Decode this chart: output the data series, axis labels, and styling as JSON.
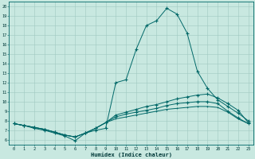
{
  "xlabel": "Humidex (Indice chaleur)",
  "bg_color": "#c8e8e0",
  "grid_color": "#a0c8c0",
  "line_color": "#006868",
  "xlim": [
    -0.5,
    23.5
  ],
  "ylim": [
    5.5,
    20.5
  ],
  "xticks": [
    0,
    1,
    2,
    3,
    4,
    5,
    6,
    7,
    8,
    9,
    10,
    11,
    12,
    13,
    14,
    15,
    16,
    17,
    18,
    19,
    20,
    21,
    22,
    23
  ],
  "yticks": [
    6,
    7,
    8,
    9,
    10,
    11,
    12,
    13,
    14,
    15,
    16,
    17,
    18,
    19,
    20
  ],
  "curve1_x": [
    0,
    1,
    2,
    3,
    4,
    5,
    6,
    7,
    8,
    9,
    10,
    11,
    12,
    13,
    14,
    15,
    16,
    17,
    18,
    19,
    20,
    21,
    22,
    23
  ],
  "curve1_y": [
    7.7,
    7.5,
    7.2,
    7.0,
    6.7,
    6.4,
    5.9,
    6.7,
    7.0,
    7.2,
    12.0,
    12.3,
    15.5,
    18.0,
    18.5,
    19.8,
    19.2,
    17.2,
    13.2,
    11.4,
    10.2,
    9.5,
    8.8,
    8.0
  ],
  "curve2_x": [
    0,
    1,
    2,
    3,
    4,
    5,
    6,
    7,
    8,
    9,
    10,
    11,
    12,
    13,
    14,
    15,
    16,
    17,
    18,
    19,
    20,
    21,
    22,
    23
  ],
  "curve2_y": [
    7.7,
    7.5,
    7.3,
    7.1,
    6.8,
    6.5,
    6.3,
    6.7,
    7.2,
    7.8,
    8.6,
    8.9,
    9.2,
    9.5,
    9.7,
    10.0,
    10.3,
    10.5,
    10.7,
    10.8,
    10.4,
    9.8,
    9.1,
    7.8
  ],
  "curve3_x": [
    0,
    1,
    2,
    3,
    4,
    5,
    6,
    7,
    8,
    9,
    10,
    11,
    12,
    13,
    14,
    15,
    16,
    17,
    18,
    19,
    20,
    21,
    22,
    23
  ],
  "curve3_y": [
    7.7,
    7.5,
    7.3,
    7.1,
    6.8,
    6.5,
    6.3,
    6.7,
    7.2,
    7.8,
    8.4,
    8.7,
    8.9,
    9.1,
    9.3,
    9.6,
    9.8,
    9.9,
    10.0,
    10.0,
    9.8,
    9.0,
    8.3,
    7.7
  ],
  "curve4_x": [
    0,
    1,
    2,
    3,
    4,
    5,
    6,
    7,
    8,
    9,
    10,
    11,
    12,
    13,
    14,
    15,
    16,
    17,
    18,
    19,
    20,
    21,
    22,
    23
  ],
  "curve4_y": [
    7.7,
    7.5,
    7.3,
    7.1,
    6.8,
    6.5,
    6.3,
    6.7,
    7.2,
    7.8,
    8.2,
    8.4,
    8.6,
    8.8,
    9.0,
    9.2,
    9.3,
    9.4,
    9.5,
    9.5,
    9.4,
    8.9,
    8.2,
    7.7
  ]
}
